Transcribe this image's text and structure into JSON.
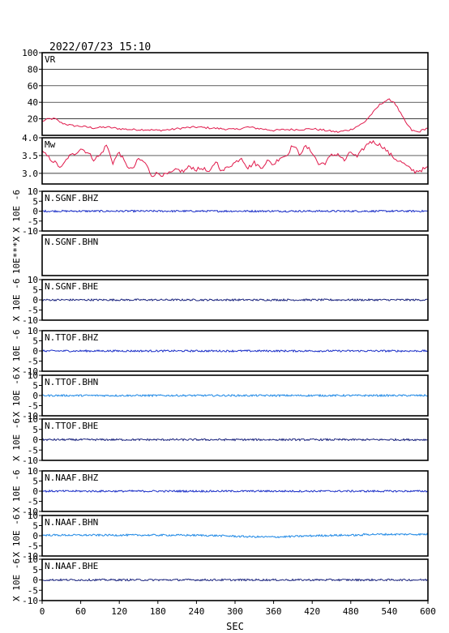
{
  "timestamp": "2022/07/23  15:10",
  "chart_data": {
    "type": "line",
    "x_axis": {
      "label": "SEC",
      "range": [
        0,
        600
      ],
      "ticks": [
        0,
        60,
        120,
        180,
        240,
        300,
        360,
        420,
        480,
        540,
        600
      ]
    },
    "panels": [
      {
        "id": "vr",
        "label": "VR",
        "color": "#e0194b",
        "ylim": [
          0,
          100
        ],
        "yticks": [
          20,
          40,
          60,
          80,
          100
        ],
        "ytick_labels": [
          "20",
          "40",
          "60",
          "80",
          "100"
        ],
        "grid": true,
        "x": [
          0,
          10,
          20,
          30,
          45,
          60,
          80,
          100,
          120,
          140,
          160,
          180,
          200,
          220,
          240,
          260,
          280,
          300,
          320,
          340,
          360,
          380,
          400,
          420,
          440,
          460,
          480,
          500,
          515,
          525,
          532,
          540,
          548,
          555,
          565,
          575,
          585,
          593,
          600
        ],
        "y": [
          17,
          20,
          20,
          15,
          12,
          11,
          9,
          10,
          8,
          7,
          7,
          6,
          7,
          9,
          10,
          9,
          8,
          7,
          10,
          8,
          6,
          7,
          7,
          8,
          6,
          4,
          7,
          15,
          28,
          37,
          41,
          43,
          40,
          30,
          16,
          6,
          4,
          7,
          9
        ]
      },
      {
        "id": "mw",
        "label": "Mw",
        "color": "#e0194b",
        "ylim": [
          2.7,
          4.0
        ],
        "yticks": [
          3.0,
          3.5,
          4.0
        ],
        "ytick_labels": [
          "3.0",
          "3.5",
          "4.0"
        ],
        "grid": true,
        "x": [
          0,
          10,
          20,
          30,
          40,
          50,
          60,
          70,
          80,
          90,
          100,
          110,
          120,
          130,
          140,
          150,
          160,
          170,
          180,
          190,
          200,
          210,
          220,
          230,
          240,
          250,
          260,
          270,
          280,
          290,
          300,
          310,
          320,
          330,
          340,
          350,
          360,
          370,
          380,
          390,
          400,
          410,
          420,
          430,
          440,
          450,
          460,
          470,
          480,
          490,
          500,
          510,
          520,
          530,
          540,
          550,
          560,
          570,
          580,
          590,
          600
        ],
        "y": [
          3.6,
          3.45,
          3.3,
          3.15,
          3.45,
          3.55,
          3.7,
          3.6,
          3.4,
          3.5,
          3.8,
          3.3,
          3.6,
          3.25,
          3.1,
          3.4,
          3.3,
          2.95,
          3.0,
          2.95,
          3.0,
          3.1,
          3.05,
          3.2,
          3.1,
          3.15,
          3.0,
          3.35,
          3.05,
          3.2,
          3.3,
          3.45,
          3.15,
          3.3,
          3.15,
          3.35,
          3.25,
          3.45,
          3.5,
          3.8,
          3.55,
          3.75,
          3.6,
          3.25,
          3.3,
          3.5,
          3.55,
          3.35,
          3.6,
          3.45,
          3.7,
          3.9,
          3.85,
          3.75,
          3.55,
          3.4,
          3.3,
          3.15,
          3.05,
          3.1,
          3.15
        ]
      },
      {
        "id": "sgnf-bhz",
        "label": "N.SGNF.BHZ",
        "color": "#1a2ec7",
        "ylim": [
          -10,
          10
        ],
        "yticks": [
          -10,
          -5,
          0,
          5,
          10
        ],
        "ytick_labels": [
          "-10",
          "-5",
          "0",
          "5",
          "10"
        ],
        "ylabel": "X 10E -6",
        "trace": "flat"
      },
      {
        "id": "sgnf-bhn",
        "label": "N.SGNF.BHN",
        "color": "#1a2ec7",
        "ylim": [
          -10,
          10
        ],
        "yticks": [],
        "ytick_labels": [],
        "ylabel": "10E***X",
        "trace": "none"
      },
      {
        "id": "sgnf-bhe",
        "label": "N.SGNF.BHE",
        "color": "#1a237e",
        "ylim": [
          -10,
          10
        ],
        "yticks": [
          -10,
          -5,
          0,
          5,
          10
        ],
        "ytick_labels": [
          "-10",
          "-5",
          "0",
          "5",
          "10"
        ],
        "ylabel": "X 10E -6",
        "trace": "flat"
      },
      {
        "id": "ttof-bhz",
        "label": "N.TTOF.BHZ",
        "color": "#1a2ec7",
        "ylim": [
          -10,
          10
        ],
        "yticks": [
          -10,
          -5,
          0,
          5,
          10
        ],
        "ytick_labels": [
          "-10",
          "-5",
          "0",
          "5",
          "10"
        ],
        "ylabel": "X 10E -6",
        "trace": "flat"
      },
      {
        "id": "ttof-bhn",
        "label": "N.TTOF.BHN",
        "color": "#1e88e5",
        "ylim": [
          -10,
          10
        ],
        "yticks": [
          -10,
          -5,
          0,
          5,
          10
        ],
        "ytick_labels": [
          "-10",
          "-5",
          "0",
          "5",
          "10"
        ],
        "ylabel": "X 10E -6",
        "trace": "flat"
      },
      {
        "id": "ttof-bhe",
        "label": "N.TTOF.BHE",
        "color": "#1a237e",
        "ylim": [
          -10,
          10
        ],
        "yticks": [
          -10,
          -5,
          0,
          5,
          10
        ],
        "ytick_labels": [
          "-10",
          "-5",
          "0",
          "5",
          "10"
        ],
        "ylabel": "X 10E -6",
        "trace": "flat"
      },
      {
        "id": "naaf-bhz",
        "label": "N.NAAF.BHZ",
        "color": "#1a2ec7",
        "ylim": [
          -10,
          10
        ],
        "yticks": [
          -10,
          -5,
          0,
          5,
          10
        ],
        "ytick_labels": [
          "-10",
          "-5",
          "0",
          "5",
          "10"
        ],
        "ylabel": "X 10E -6",
        "trace": "flat"
      },
      {
        "id": "naaf-bhn",
        "label": "N.NAAF.BHN",
        "color": "#1e88e5",
        "ylim": [
          -10,
          10
        ],
        "yticks": [
          -10,
          -5,
          0,
          5,
          10
        ],
        "ytick_labels": [
          "-10",
          "-5",
          "0",
          "5",
          "10"
        ],
        "ylabel": "X 10E -6",
        "trace": "drift"
      },
      {
        "id": "naaf-bhe",
        "label": "N.NAAF.BHE",
        "color": "#1a237e",
        "ylim": [
          -10,
          10
        ],
        "yticks": [
          -10,
          -5,
          0,
          5,
          10
        ],
        "ytick_labels": [
          "-10",
          "-5",
          "0",
          "5",
          "10"
        ],
        "ylabel": "X 10E -6",
        "trace": "flat"
      }
    ]
  }
}
